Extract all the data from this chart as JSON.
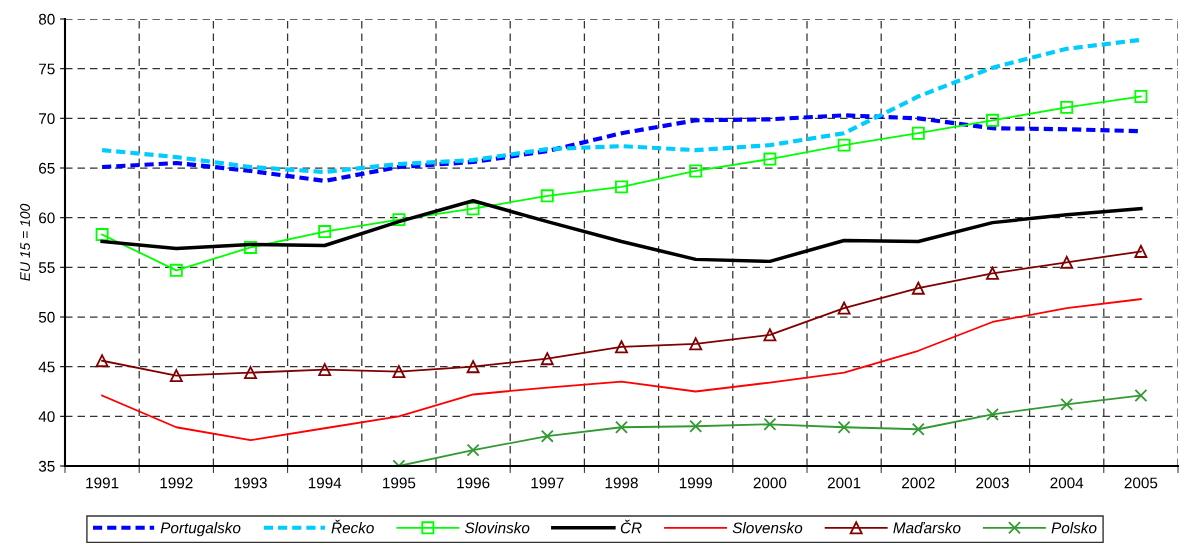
{
  "chart_data": {
    "type": "line",
    "ylabel": "EU 15 = 100",
    "categories": [
      "1991",
      "1992",
      "1993",
      "1994",
      "1995",
      "1996",
      "1997",
      "1998",
      "1999",
      "2000",
      "2001",
      "2002",
      "2003",
      "2004",
      "2005"
    ],
    "ylim": [
      35,
      80
    ],
    "yticks": [
      35,
      40,
      45,
      50,
      55,
      60,
      65,
      70,
      75,
      80
    ],
    "grid": true,
    "legend": "bottom",
    "series": [
      {
        "name": "Portugalsko",
        "color": "#0000ff",
        "line_style": "dashed",
        "marker": "none",
        "values": [
          65.1,
          65.5,
          64.7,
          63.7,
          65.1,
          65.6,
          66.7,
          68.5,
          69.8,
          69.9,
          70.3,
          70.0,
          69.0,
          68.9,
          68.7
        ]
      },
      {
        "name": "Řecko",
        "color": "#00ccff",
        "line_style": "dashed",
        "marker": "none",
        "values": [
          66.8,
          66.1,
          65.1,
          64.6,
          65.4,
          65.8,
          66.9,
          67.2,
          66.8,
          67.3,
          68.5,
          72.2,
          75.1,
          77.0,
          77.9
        ]
      },
      {
        "name": "Slovinsko",
        "color": "#00ff00",
        "line_style": "solid",
        "marker": "square",
        "values": [
          58.3,
          54.7,
          57.0,
          58.6,
          59.8,
          60.9,
          62.2,
          63.1,
          64.7,
          65.9,
          67.3,
          68.5,
          69.8,
          71.1,
          72.2
        ]
      },
      {
        "name": "ČR",
        "color": "#000000",
        "line_style": "solid",
        "marker": "none",
        "values": [
          57.6,
          56.9,
          57.3,
          57.2,
          59.6,
          61.7,
          59.6,
          57.6,
          55.8,
          55.6,
          57.7,
          57.6,
          59.5,
          60.3,
          60.9
        ]
      },
      {
        "name": "Slovensko",
        "color": "#ff0000",
        "line_style": "solid",
        "marker": "none",
        "values": [
          42.1,
          38.9,
          37.6,
          38.8,
          40.0,
          42.2,
          42.9,
          43.5,
          42.5,
          43.4,
          44.4,
          46.6,
          49.5,
          50.9,
          51.8
        ]
      },
      {
        "name": "Maďarsko",
        "color": "#800000",
        "line_style": "solid",
        "marker": "triangle",
        "values": [
          45.6,
          44.1,
          44.4,
          44.7,
          44.5,
          45.0,
          45.8,
          47.0,
          47.3,
          48.2,
          50.9,
          52.9,
          54.4,
          55.5,
          56.6
        ]
      },
      {
        "name": "Polsko",
        "color": "#339933",
        "line_style": "solid",
        "marker": "cross",
        "values": [
          null,
          null,
          null,
          null,
          35.0,
          36.6,
          38.0,
          38.9,
          39.0,
          39.2,
          38.9,
          38.7,
          40.2,
          41.2,
          42.1
        ]
      }
    ]
  }
}
